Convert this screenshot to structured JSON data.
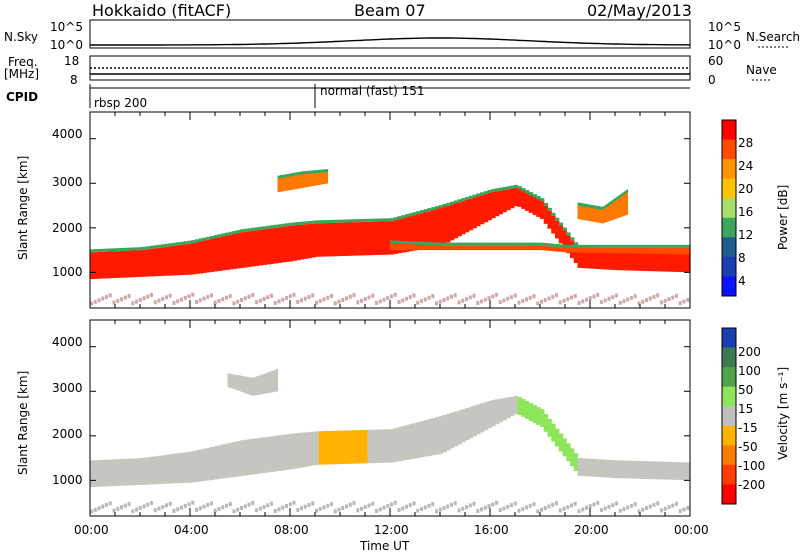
{
  "header": {
    "title": "Hokkaido (fitACF)",
    "beam": "Beam 07",
    "date": "02/May/2013"
  },
  "top_panels": {
    "nsky_label": "N.Sky",
    "nsky_ticks": [
      "10^5",
      "10^0"
    ],
    "nsearch_label": "N.Search",
    "nsearch_ticks": [
      "10^5",
      "10^0"
    ],
    "freq_label": "Freq.",
    "freq_unit": "[MHz]",
    "freq_ticks": [
      "18",
      "8"
    ],
    "nave_label": "Nave",
    "nave_ticks": [
      "60",
      "0"
    ],
    "cpid_label": "CPID",
    "cpid_segments": [
      {
        "label": "rbsp 200",
        "start_hour": 0
      },
      {
        "label": "normal (fast) 151",
        "start_hour": 9
      }
    ]
  },
  "chart_data": [
    {
      "type": "heatmap",
      "name": "power",
      "ylabel": "Slant Range [km]",
      "yticks": [
        "4000",
        "3000",
        "2000",
        "1000"
      ],
      "ylim": [
        200,
        4600
      ],
      "xlim": [
        0,
        24
      ],
      "colorbar": {
        "label": "Power [dB]",
        "ticks": [
          "28",
          "24",
          "20",
          "16",
          "12",
          "8",
          "4"
        ],
        "colors": [
          "#ff0000",
          "#ff4a00",
          "#ff9600",
          "#ffc400",
          "#a6e06a",
          "#3ca55c",
          "#1d5c8f",
          "#1a3fb0",
          "#0a12ff"
        ]
      },
      "bands": [
        {
          "x": [
            0,
            2,
            4,
            6,
            8,
            9,
            12,
            14,
            16,
            17,
            18,
            19.5,
            21,
            24
          ],
          "y_lo": [
            850,
            900,
            950,
            1100,
            1250,
            1350,
            1400,
            1600,
            2200,
            2500,
            2200,
            1100,
            1050,
            1000
          ],
          "y_hi": [
            1450,
            1500,
            1650,
            1900,
            2050,
            2100,
            2150,
            2450,
            2800,
            2900,
            2600,
            1500,
            1450,
            1400
          ]
        },
        {
          "x": [
            12,
            14,
            16,
            18,
            19,
            24
          ],
          "y_lo": [
            1500,
            1500,
            1500,
            1500,
            1450,
            1400
          ],
          "y_hi": [
            1650,
            1600,
            1600,
            1600,
            1550,
            1550
          ]
        },
        {
          "x": [
            7.5,
            8.5,
            9.5
          ],
          "y_lo": [
            2800,
            2900,
            3000
          ],
          "y_hi": [
            3100,
            3200,
            3250
          ]
        },
        {
          "x": [
            19.5,
            20.5,
            21.5
          ],
          "y_lo": [
            2200,
            2100,
            2300
          ],
          "y_hi": [
            2500,
            2400,
            2800
          ]
        }
      ]
    },
    {
      "type": "heatmap",
      "name": "velocity",
      "ylabel": "Slant Range [km]",
      "yticks": [
        "4000",
        "3000",
        "2000",
        "1000"
      ],
      "ylim": [
        200,
        4600
      ],
      "xlim": [
        0,
        24
      ],
      "xlabel": "Time UT",
      "xticks": [
        "00:00",
        "04:00",
        "08:00",
        "12:00",
        "16:00",
        "20:00",
        "00:00"
      ],
      "colorbar": {
        "label": "Velocity [m s⁻¹]",
        "ticks": [
          "200",
          "100",
          "50",
          "15",
          "-15",
          "-50",
          "-100",
          "-200"
        ],
        "colors": [
          "#1a3fb0",
          "#3b7a54",
          "#4fa34a",
          "#8fe55a",
          "#c0c0c0",
          "#ffb300",
          "#ff7a00",
          "#ff3c00",
          "#ff0000"
        ]
      },
      "bands": [
        {
          "x": [
            0,
            2,
            4,
            6,
            8,
            9,
            12,
            14,
            16,
            17,
            18,
            19.5,
            21,
            24
          ],
          "y_lo": [
            850,
            900,
            950,
            1100,
            1250,
            1350,
            1400,
            1600,
            2200,
            2500,
            2200,
            1100,
            1050,
            1000
          ],
          "y_hi": [
            1450,
            1500,
            1650,
            1900,
            2050,
            2100,
            2150,
            2450,
            2800,
            2900,
            2600,
            1500,
            1450,
            1400
          ]
        },
        {
          "x": [
            5.5,
            6.5,
            7.5
          ],
          "y_lo": [
            3100,
            2900,
            3000
          ],
          "y_hi": [
            3400,
            3300,
            3500
          ]
        }
      ]
    }
  ]
}
